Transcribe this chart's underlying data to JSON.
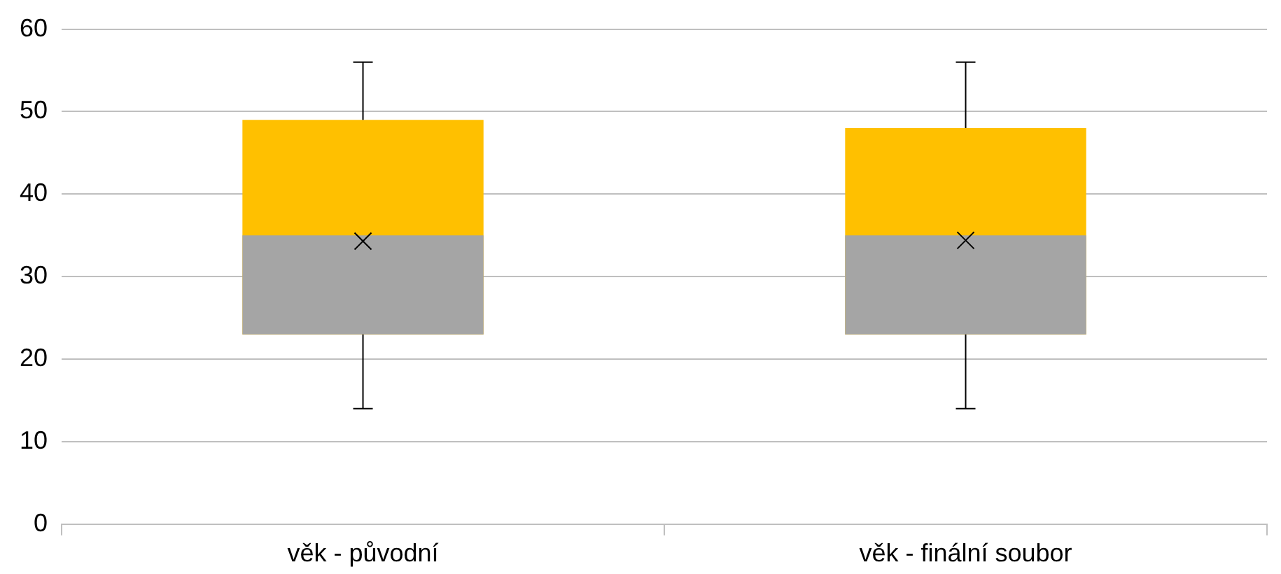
{
  "chart_data": {
    "type": "box",
    "categories": [
      "věk - původní",
      "věk - finální soubor"
    ],
    "boxes": [
      {
        "low": 14,
        "q1": 23,
        "median": 35,
        "q3": 49,
        "high": 56,
        "mean": 34.3
      },
      {
        "low": 14,
        "q1": 23,
        "median": 35,
        "q3": 48,
        "high": 56,
        "mean": 34.4
      }
    ],
    "colors": [
      "#ffc000",
      "#ffc000"
    ],
    "color": "#a5a5a5",
    "ylim": [
      0,
      60
    ],
    "yticks": [
      0,
      10,
      20,
      30,
      40,
      50,
      60
    ],
    "grid": "y",
    "legend": false,
    "marker": "cross"
  }
}
